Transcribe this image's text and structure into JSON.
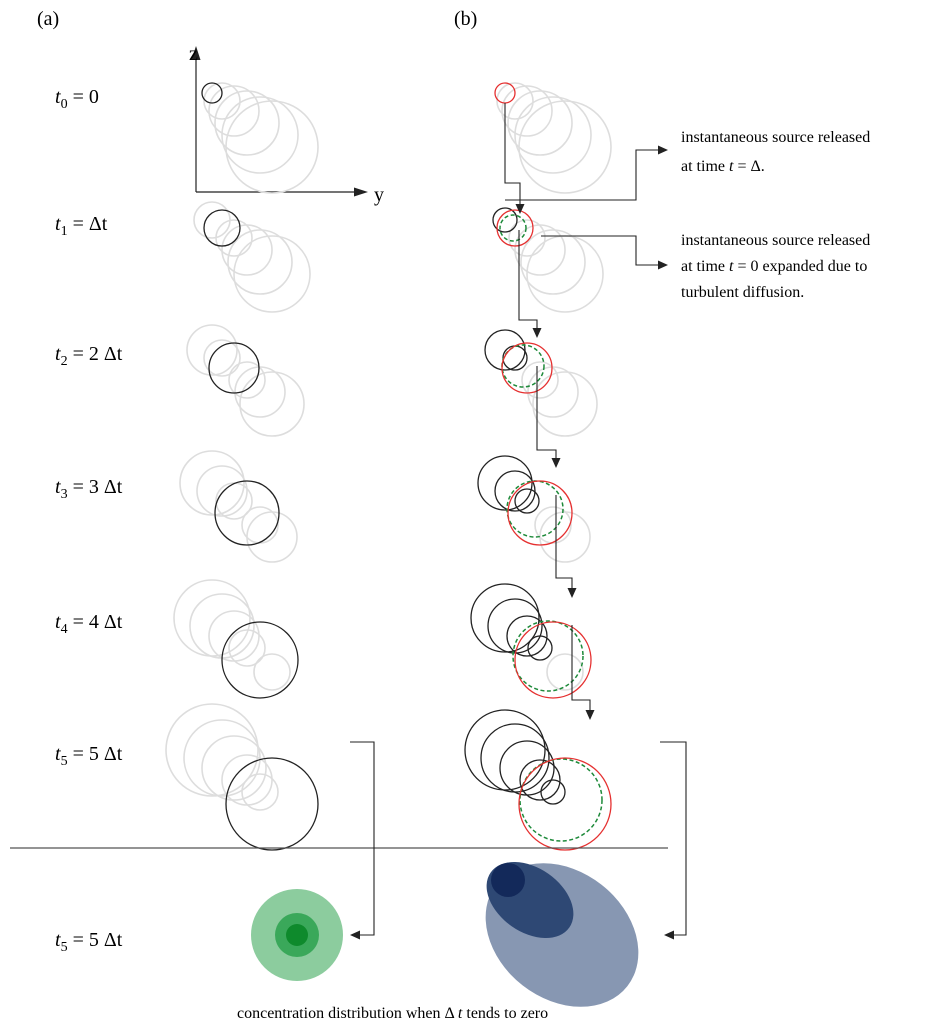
{
  "panels": {
    "a": "(a)",
    "b": "(b)"
  },
  "axes": {
    "z": "z",
    "y": "y"
  },
  "rows": [
    {
      "t": "t",
      "sub": "0",
      "eq": " = 0",
      "step": 0
    },
    {
      "t": "t",
      "sub": "1",
      "eq": " = Δt",
      "step": 1
    },
    {
      "t": "t",
      "sub": "2",
      "eq": " = 2 Δt",
      "step": 2
    },
    {
      "t": "t",
      "sub": "3",
      "eq": " = 3 Δt",
      "step": 3
    },
    {
      "t": "t",
      "sub": "4",
      "eq": " = 4 Δt",
      "step": 4
    },
    {
      "t": "t",
      "sub": "5",
      "eq": " = 5 Δt",
      "step": 5
    }
  ],
  "bottom_row": {
    "t": "t",
    "sub": "5",
    "eq": " = 5 Δt"
  },
  "annotations": {
    "source_delta_line1": "instantaneous source released",
    "source_delta_line2_pre": "at time ",
    "source_delta_line2_var": "t",
    "source_delta_line2_post": " =  Δ.",
    "source_zero_line1": "instantaneous source released",
    "source_zero_line2_pre": "at time ",
    "source_zero_line2_var": "t",
    "source_zero_line2_post": " = 0 expanded due to",
    "source_zero_line3": "turbulent diffusion."
  },
  "caption": {
    "pre": "concentration distribution when Δ ",
    "var": "t",
    "post": " tends to zero"
  },
  "colors": {
    "current_puff": "#222222",
    "ghost_puff": "#dddddd",
    "red_puff": "#e53030",
    "green_dashed_puff": "#1e8a3a",
    "concentration_a_outer": "#8ccc9e",
    "concentration_a_mid": "#3aa85a",
    "concentration_a_core": "#0e8a2c",
    "concentration_b_outer": "#8797b2",
    "concentration_b_mid": "#2e4874",
    "concentration_b_core": "#13295a"
  }
}
